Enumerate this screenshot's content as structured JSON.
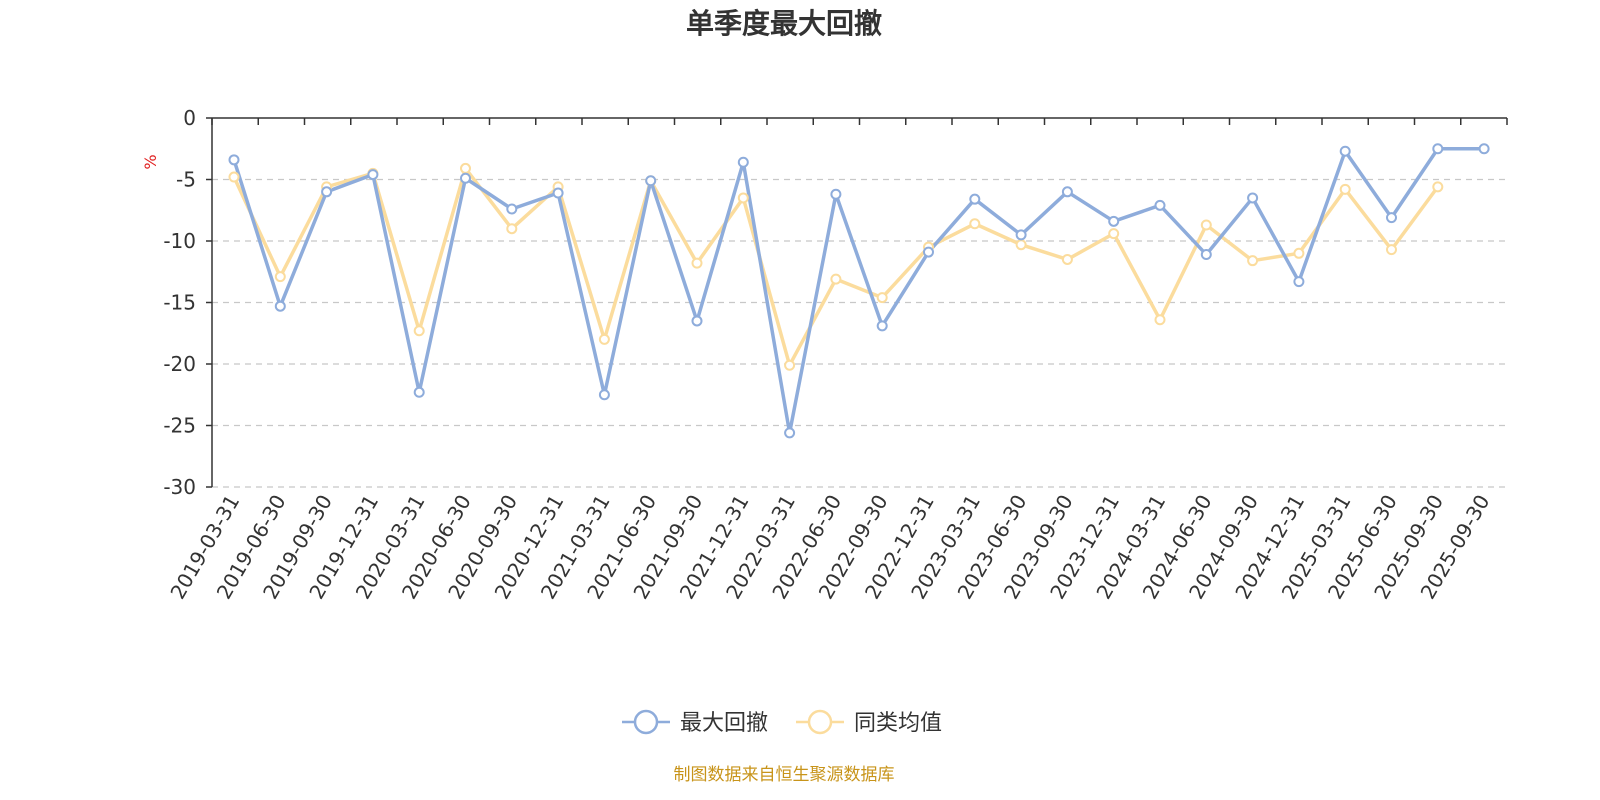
{
  "chart_data": {
    "type": "line",
    "title": "单季度最大回撤",
    "ylabel": "%",
    "ylim": [
      -30,
      0
    ],
    "yticks": [
      0,
      -5,
      -10,
      -15,
      -20,
      -25,
      -30
    ],
    "grid": true,
    "legend_position": "bottom",
    "categories": [
      "2019-03-31",
      "2019-06-30",
      "2019-09-30",
      "2019-12-31",
      "2020-03-31",
      "2020-06-30",
      "2020-09-30",
      "2020-12-31",
      "2021-03-31",
      "2021-06-30",
      "2021-09-30",
      "2021-12-31",
      "2022-03-31",
      "2022-06-30",
      "2022-09-30",
      "2022-12-31",
      "2023-03-31",
      "2023-06-30",
      "2023-09-30",
      "2023-12-31",
      "2024-03-31",
      "2024-06-30",
      "2024-09-30",
      "2024-12-31",
      "2025-03-31",
      "2025-06-30",
      "2025-09-30",
      "2025-09-30"
    ],
    "series": [
      {
        "name": "最大回撤",
        "color": "#8eacdb",
        "values": [
          -3.4,
          -15.3,
          -6.0,
          -4.6,
          -22.3,
          -4.9,
          -7.4,
          -6.1,
          -22.5,
          -5.1,
          -16.5,
          -3.6,
          -25.6,
          -6.2,
          -16.9,
          -10.9,
          -6.6,
          -9.5,
          -6.0,
          -8.4,
          -7.1,
          -11.1,
          -6.5,
          -13.3,
          -2.7,
          -8.1,
          -2.5,
          -2.5
        ]
      },
      {
        "name": "同类均值",
        "color": "#fbdc9d",
        "values": [
          -4.8,
          -12.9,
          -5.6,
          -4.5,
          -17.3,
          -4.1,
          -9.0,
          -5.6,
          -18.0,
          -5.1,
          -11.8,
          -6.5,
          -20.1,
          -13.1,
          -14.6,
          -10.5,
          -8.6,
          -10.3,
          -11.5,
          -9.4,
          -16.4,
          -8.7,
          -11.6,
          -11.0,
          -5.8,
          -10.7,
          -5.6,
          null
        ]
      }
    ],
    "source": "制图数据来自恒生聚源数据库",
    "unit_color": "#e02020",
    "source_color": "#c8941a"
  }
}
